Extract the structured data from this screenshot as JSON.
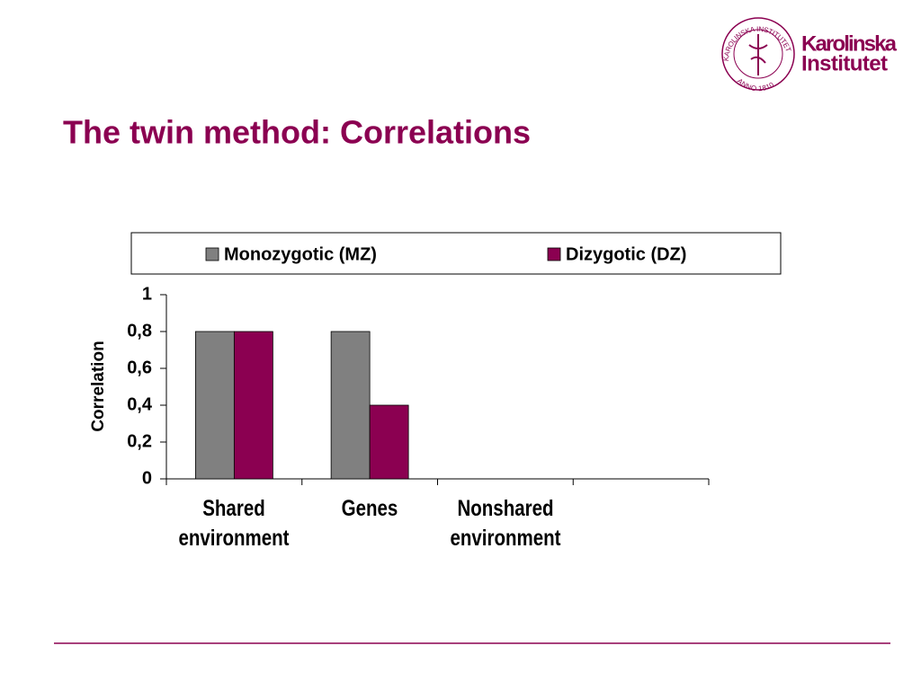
{
  "logo": {
    "lines": [
      "Karolinska",
      "Institutet"
    ],
    "seal_top": "KAROLINSKA INSTITUTET",
    "seal_bottom": "ANNO 1810"
  },
  "chart_data": {
    "type": "bar",
    "title": "The twin method: Correlations",
    "y_label": "Correlation",
    "categories": [
      "Shared environment",
      "Genes",
      "Nonshared environment",
      null
    ],
    "series": [
      {
        "name": "Monozygotic (MZ)",
        "color": "#808080",
        "values": [
          0.8,
          0.8,
          0,
          null
        ]
      },
      {
        "name": "Dizygotic (DZ)",
        "color": "#8b0051",
        "values": [
          0.8,
          0.4,
          0,
          null
        ]
      }
    ],
    "ylim": [
      0,
      1
    ],
    "yticks": [
      0,
      {
        "value": 0.2,
        "label": "0,2"
      },
      {
        "value": 0.4,
        "label": "0,4"
      },
      {
        "value": 0.6,
        "label": "0,6"
      },
      {
        "value": 0.8,
        "label": "0,8"
      },
      1
    ],
    "grid": false,
    "legend": "top"
  }
}
